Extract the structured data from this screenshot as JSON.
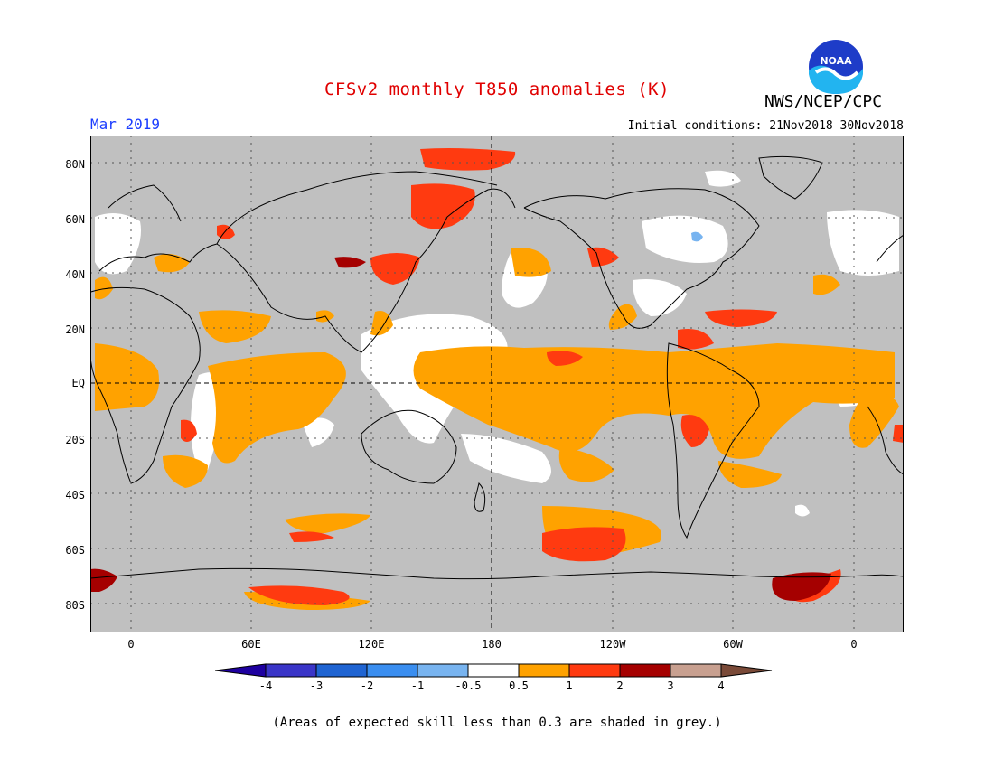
{
  "title": "CFSv2 monthly T850 anomalies (K)",
  "agency": "NWS/NCEP/CPC",
  "logo_text": "NOAA",
  "valid_month": "Mar 2019",
  "initial_conditions": "Initial conditions: 21Nov2018–30Nov2018",
  "footnote": "(Areas of expected skill less than 0.3 are shaded in grey.)",
  "colors": {
    "title": "#e00000",
    "month": "#1a3cff",
    "skill_grey": "#c0c0c0",
    "neutral": "#ffffff"
  },
  "lat_labels": [
    "80N",
    "60N",
    "40N",
    "20N",
    "EQ",
    "20S",
    "40S",
    "60S",
    "80S"
  ],
  "lon_labels": [
    "0",
    "60E",
    "120E",
    "180",
    "120W",
    "60W",
    "0"
  ],
  "colorbar": {
    "levels": [
      "-4",
      "-3",
      "-2",
      "-1",
      "-0.5",
      "0.5",
      "1",
      "2",
      "3",
      "4"
    ],
    "colors": [
      "#1e00a0",
      "#3a35c8",
      "#1f64d2",
      "#3a8ef0",
      "#78b4f0",
      "#ffffff",
      "#ffa200",
      "#ff3a10",
      "#a50000",
      "#c8a090",
      "#7a4a38"
    ]
  }
}
